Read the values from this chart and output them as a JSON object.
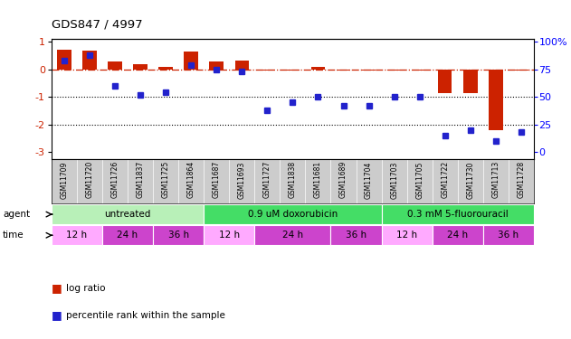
{
  "title": "GDS847 / 4997",
  "samples": [
    "GSM11709",
    "GSM11720",
    "GSM11726",
    "GSM11837",
    "GSM11725",
    "GSM11864",
    "GSM11687",
    "GSM11693",
    "GSM11727",
    "GSM11838",
    "GSM11681",
    "GSM11689",
    "GSM11704",
    "GSM11703",
    "GSM11705",
    "GSM11722",
    "GSM11730",
    "GSM11713",
    "GSM11728"
  ],
  "log_ratio": [
    0.72,
    0.68,
    0.28,
    0.18,
    0.08,
    0.65,
    0.28,
    0.32,
    -0.04,
    -0.04,
    0.1,
    -0.04,
    -0.04,
    -0.04,
    -0.04,
    -0.88,
    -0.88,
    -2.2,
    -0.04
  ],
  "percentile_rank": [
    83,
    88,
    60,
    52,
    54,
    79,
    75,
    73,
    38,
    45,
    50,
    42,
    42,
    50,
    50,
    15,
    20,
    10,
    18
  ],
  "agent_colors": [
    "#b8f0b8",
    "#44dd66",
    "#44dd66"
  ],
  "agent_labels": [
    "untreated",
    "0.9 uM doxorubicin",
    "0.3 mM 5-fluorouracil"
  ],
  "agent_ranges": [
    [
      0,
      6
    ],
    [
      6,
      13
    ],
    [
      13,
      19
    ]
  ],
  "time_defs": [
    [
      0,
      2,
      "12 h",
      "#ffaaff"
    ],
    [
      2,
      4,
      "24 h",
      "#cc44cc"
    ],
    [
      4,
      6,
      "36 h",
      "#cc44cc"
    ],
    [
      6,
      8,
      "12 h",
      "#ffaaff"
    ],
    [
      8,
      11,
      "24 h",
      "#cc44cc"
    ],
    [
      11,
      13,
      "36 h",
      "#cc44cc"
    ],
    [
      13,
      15,
      "12 h",
      "#ffaaff"
    ],
    [
      15,
      17,
      "24 h",
      "#cc44cc"
    ],
    [
      17,
      19,
      "36 h",
      "#cc44cc"
    ]
  ],
  "bar_color": "#cc2200",
  "dot_color": "#2222cc",
  "ylim": [
    -3.25,
    1.1
  ],
  "yticks": [
    1,
    0,
    -1,
    -2,
    -3
  ],
  "y2ticks_vals": [
    100,
    75,
    50,
    25,
    0
  ],
  "y2ticks_labels": [
    "100%",
    "75",
    "50",
    "25",
    "0"
  ],
  "dotted_lines": [
    -1.0,
    -2.0
  ],
  "zero_line_color": "#cc2200",
  "gsm_bg": "#cccccc",
  "fig_bg": "#ffffff"
}
